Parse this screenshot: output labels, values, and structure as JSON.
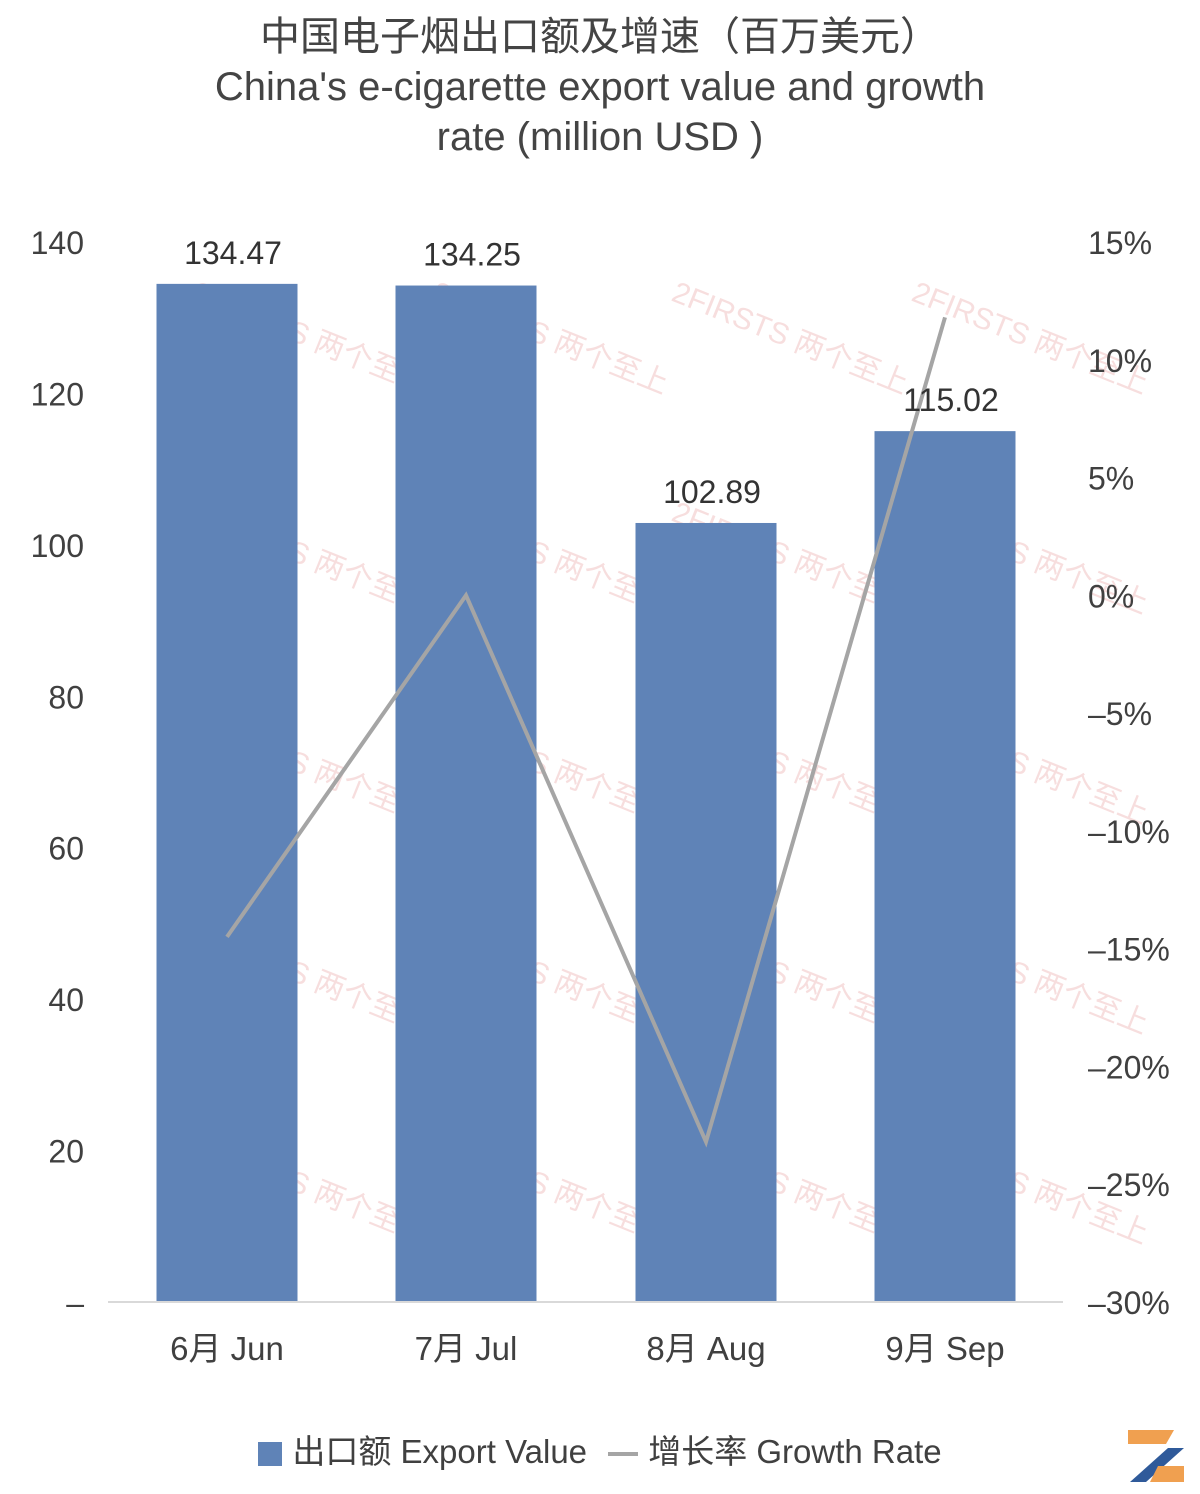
{
  "title": {
    "zh": "中国电子烟出口额及增速（百万美元）",
    "en_line1": "China's e-cigarette export value and growth",
    "en_line2": "rate (million USD )"
  },
  "watermark": "2FIRSTS 两个至上",
  "colors": {
    "bar": "#5f83b7",
    "line": "#a5a5a5",
    "watermark": "#e8a0a0",
    "logo_orange": "#f0a050",
    "logo_blue": "#2f5a9a"
  },
  "chart_data": {
    "type": "bar",
    "categories": [
      "6月 Jun",
      "7月 Jul",
      "8月 Aug",
      "9月 Sep"
    ],
    "series": [
      {
        "name": "出口额 Export Value",
        "type": "bar",
        "axis": "left",
        "values": [
          134.47,
          134.25,
          102.89,
          115.02
        ],
        "data_labels": [
          "134.47",
          "134.25",
          "102.89",
          "115.02"
        ]
      },
      {
        "name": "增长率 Growth Rate",
        "type": "line",
        "axis": "right",
        "values": [
          -14.5,
          0.0,
          -23.2,
          11.8
        ]
      }
    ],
    "y_left": {
      "range": [
        0,
        140
      ],
      "ticks": [
        "–",
        "20",
        "40",
        "60",
        "80",
        "100",
        "120",
        "140"
      ]
    },
    "y_right": {
      "range": [
        -30,
        15
      ],
      "unit": "%",
      "ticks": [
        "–30%",
        "–25%",
        "–20%",
        "–15%",
        "–10%",
        "–5%",
        "0%",
        "5%",
        "10%",
        "15%"
      ]
    },
    "grid": false,
    "legend_position": "bottom"
  },
  "legend": {
    "bar_label": "出口额 Export Value",
    "line_label": "增长率 Growth Rate"
  }
}
